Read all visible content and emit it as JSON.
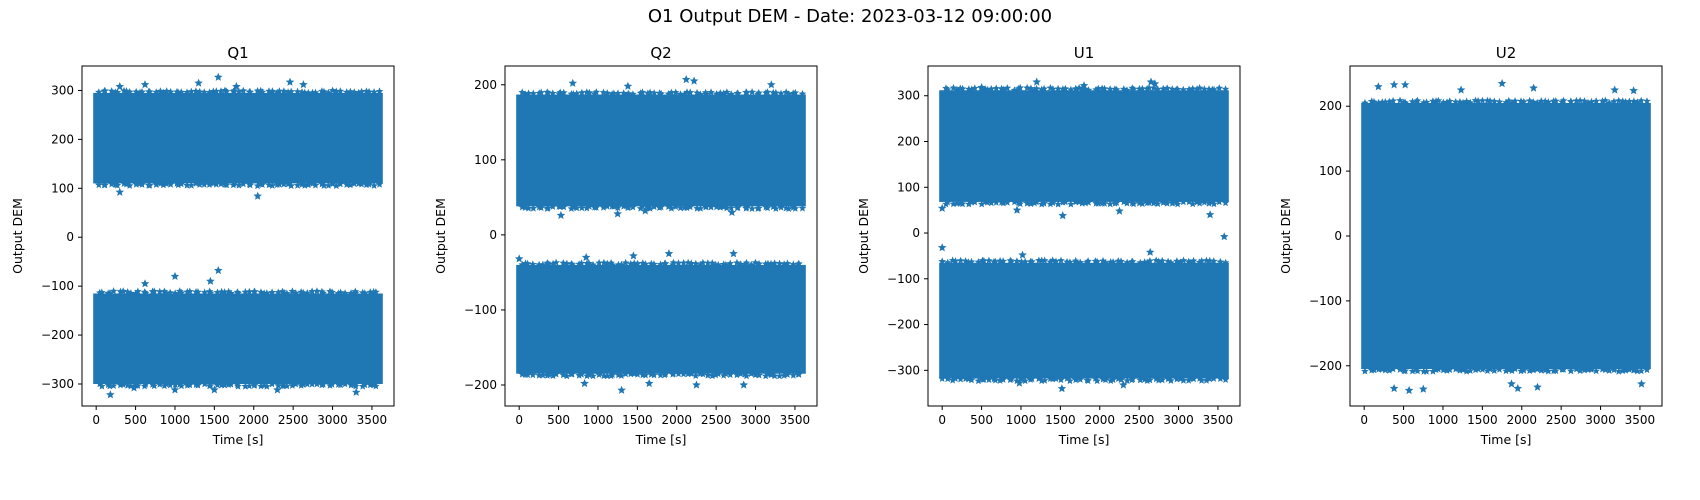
{
  "figure": {
    "suptitle": "O1 Output DEM - Date: 2023-03-12 09:00:00",
    "marker_color": "#1f77b4"
  },
  "chart_data": [
    {
      "type": "scatter",
      "title": "Q1",
      "xlabel": "Time [s]",
      "ylabel": "Output DEM",
      "marker": "star",
      "color": "#1f77b4",
      "xlim": [
        -180,
        3780
      ],
      "ylim": [
        -345,
        350
      ],
      "xticks": [
        0,
        500,
        1000,
        1500,
        2000,
        2500,
        3000,
        3500
      ],
      "yticks": [
        -300,
        -200,
        -100,
        0,
        100,
        200,
        300
      ],
      "x_range": [
        0,
        3600
      ],
      "bands": [
        {
          "ymin": 110,
          "ymax": 295
        },
        {
          "ymin": -300,
          "ymax": -115
        }
      ],
      "outliers": [
        [
          300,
          308
        ],
        [
          620,
          312
        ],
        [
          1300,
          315
        ],
        [
          1550,
          327
        ],
        [
          1780,
          308
        ],
        [
          2460,
          317
        ],
        [
          2630,
          312
        ],
        [
          300,
          92
        ],
        [
          2050,
          84
        ],
        [
          1000,
          -80
        ],
        [
          1550,
          -68
        ],
        [
          1450,
          -90
        ],
        [
          620,
          -95
        ],
        [
          180,
          -322
        ],
        [
          1000,
          -312
        ],
        [
          1500,
          -312
        ],
        [
          2300,
          -312
        ],
        [
          3300,
          -317
        ],
        [
          480,
          -308
        ]
      ]
    },
    {
      "type": "scatter",
      "title": "Q2",
      "xlabel": "Time [s]",
      "ylabel": "Output DEM",
      "marker": "star",
      "color": "#1f77b4",
      "xlim": [
        -180,
        3780
      ],
      "ylim": [
        -228,
        225
      ],
      "xticks": [
        0,
        500,
        1000,
        1500,
        2000,
        2500,
        3000,
        3500
      ],
      "yticks": [
        -200,
        -100,
        0,
        100,
        200
      ],
      "x_range": [
        0,
        3600
      ],
      "bands": [
        {
          "ymin": 38,
          "ymax": 187
        },
        {
          "ymin": -185,
          "ymax": -40
        }
      ],
      "outliers": [
        [
          680,
          202
        ],
        [
          2120,
          207
        ],
        [
          2220,
          205
        ],
        [
          3200,
          200
        ],
        [
          1380,
          198
        ],
        [
          530,
          26
        ],
        [
          1250,
          28
        ],
        [
          2700,
          30
        ],
        [
          1600,
          32
        ],
        [
          1300,
          -207
        ],
        [
          2250,
          -200
        ],
        [
          2850,
          -200
        ],
        [
          1650,
          -198
        ],
        [
          830,
          -198
        ],
        [
          1450,
          -28
        ],
        [
          1900,
          -25
        ],
        [
          2720,
          -25
        ],
        [
          850,
          -30
        ],
        [
          0,
          -32
        ]
      ]
    },
    {
      "type": "scatter",
      "title": "U1",
      "xlabel": "Time [s]",
      "ylabel": "Output DEM",
      "marker": "star",
      "color": "#1f77b4",
      "xlim": [
        -180,
        3780
      ],
      "ylim": [
        -378,
        365
      ],
      "xticks": [
        0,
        500,
        1000,
        1500,
        2000,
        2500,
        3000,
        3500
      ],
      "yticks": [
        -300,
        -200,
        -100,
        0,
        100,
        200,
        300
      ],
      "x_range": [
        0,
        3600
      ],
      "bands": [
        {
          "ymin": 68,
          "ymax": 312
        },
        {
          "ymin": -318,
          "ymax": -65
        }
      ],
      "outliers": [
        [
          1200,
          330
        ],
        [
          2650,
          330
        ],
        [
          2700,
          326
        ],
        [
          1800,
          322
        ],
        [
          500,
          318
        ],
        [
          1530,
          38
        ],
        [
          3400,
          40
        ],
        [
          0,
          54
        ],
        [
          950,
          50
        ],
        [
          2250,
          48
        ],
        [
          1520,
          -340
        ],
        [
          0,
          -32
        ],
        [
          3580,
          -8
        ],
        [
          1020,
          -48
        ],
        [
          2640,
          -42
        ],
        [
          980,
          -328
        ],
        [
          2300,
          -332
        ]
      ]
    },
    {
      "type": "scatter",
      "title": "U2",
      "xlabel": "Time [s]",
      "ylabel": "Output DEM",
      "marker": "star",
      "color": "#1f77b4",
      "xlim": [
        -180,
        3780
      ],
      "ylim": [
        -262,
        262
      ],
      "xticks": [
        0,
        500,
        1000,
        1500,
        2000,
        2500,
        3000,
        3500
      ],
      "yticks": [
        -200,
        -100,
        0,
        100,
        200
      ],
      "x_range": [
        0,
        3600
      ],
      "bands": [
        {
          "ymin": -205,
          "ymax": 205
        }
      ],
      "outliers": [
        [
          180,
          230
        ],
        [
          380,
          233
        ],
        [
          520,
          233
        ],
        [
          1750,
          235
        ],
        [
          1230,
          225
        ],
        [
          2150,
          228
        ],
        [
          3180,
          225
        ],
        [
          3420,
          224
        ],
        [
          380,
          -235
        ],
        [
          570,
          -238
        ],
        [
          750,
          -236
        ],
        [
          1950,
          -235
        ],
        [
          2200,
          -233
        ],
        [
          1870,
          -228
        ],
        [
          3520,
          -228
        ]
      ]
    }
  ]
}
